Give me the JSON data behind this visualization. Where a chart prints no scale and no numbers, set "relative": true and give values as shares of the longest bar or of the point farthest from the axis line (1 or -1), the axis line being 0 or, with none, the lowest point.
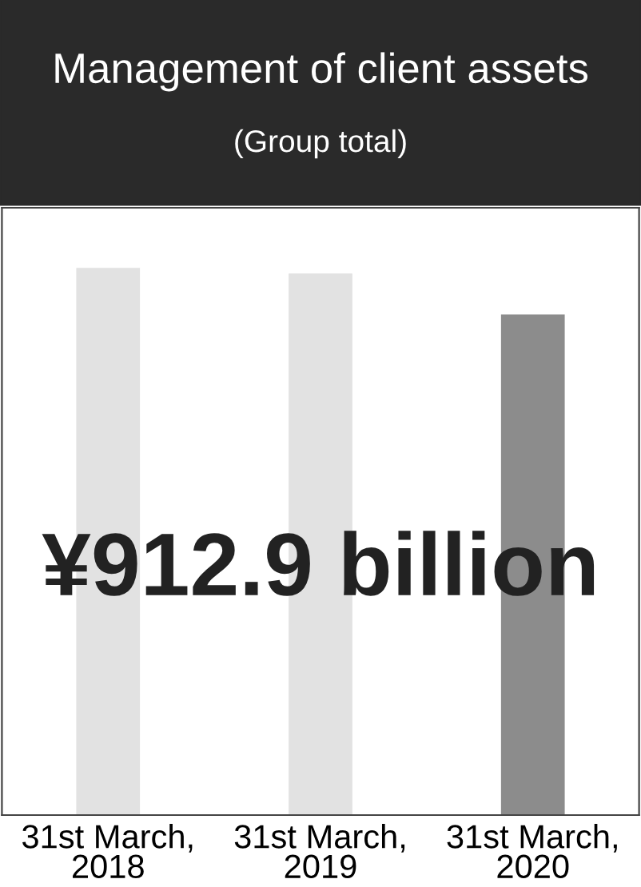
{
  "chart_data": {
    "type": "bar",
    "title": "Management of client assets",
    "subtitle": "(Group total)",
    "categories": [
      "31st March,\n2018",
      "31st March,\n2019",
      "31st March,\n2020"
    ],
    "values": [
      1,
      0.99,
      0.915
    ],
    "colors": [
      "#e2e2e2",
      "#e2e2e2",
      "#8c8c8c"
    ],
    "relative": true,
    "annotations": [
      "¥912.9 billion"
    ]
  }
}
